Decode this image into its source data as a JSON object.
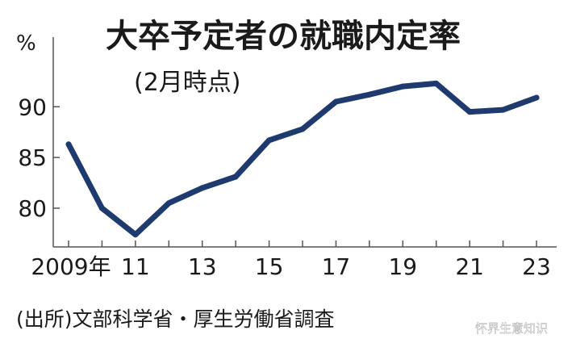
{
  "chart_data": {
    "type": "line",
    "title": "大卒予定者の就職内定率",
    "subtitle": "(2月時点)",
    "ylabel": "%",
    "xlabel": "",
    "x": [
      2009,
      2010,
      2011,
      2012,
      2013,
      2014,
      2015,
      2016,
      2017,
      2018,
      2019,
      2020,
      2021,
      2022,
      2023
    ],
    "ylim": [
      76.5,
      94
    ],
    "xlim": [
      2009,
      2023
    ],
    "yticks": [
      80,
      85,
      90
    ],
    "xticks": [
      2009,
      2011,
      2013,
      2015,
      2017,
      2019,
      2021,
      2023
    ],
    "xtick_labels": [
      "2009年",
      "11",
      "13",
      "15",
      "17",
      "19",
      "21",
      "23"
    ],
    "grid": false,
    "series": [
      {
        "values": [
          86.3,
          80.0,
          77.4,
          80.5,
          82.0,
          83.1,
          86.7,
          87.8,
          90.5,
          91.2,
          92.0,
          92.3,
          89.5,
          89.7,
          90.9
        ]
      }
    ]
  },
  "source": "(出所)文部科学省・厚生労働省調査",
  "watermark": "怀界生意知识",
  "colors": {
    "line": "#1f3a6e",
    "axis": "#555555",
    "text": "#1a1a1a"
  }
}
